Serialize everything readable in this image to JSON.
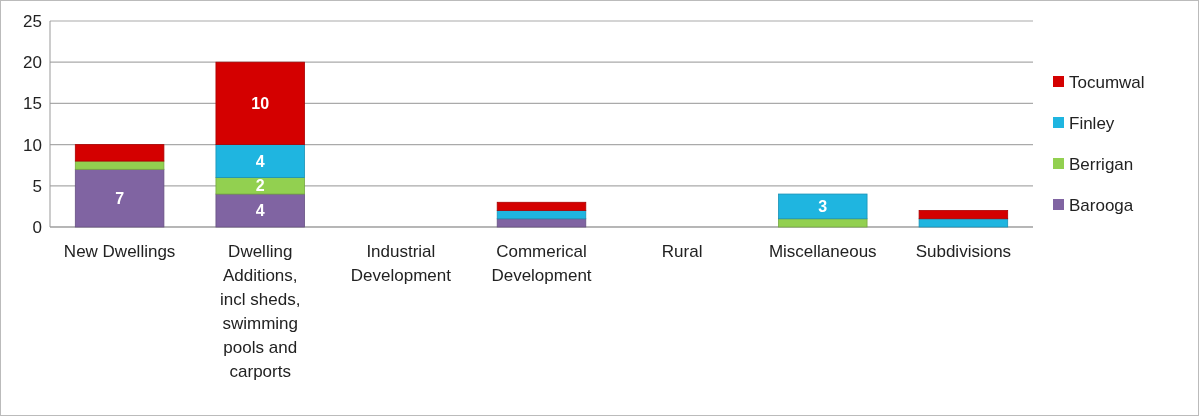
{
  "chart_data": {
    "type": "bar",
    "stacked": true,
    "categories": [
      "New Dwellings",
      "Dwelling Additions, incl sheds, swimming pools and carports",
      "Industrial Development",
      "Commerical Development",
      "Rural",
      "Miscellaneous",
      "Subdivisions"
    ],
    "series": [
      {
        "name": "Barooga",
        "color": "#8064a2",
        "values": [
          7,
          4,
          0,
          1,
          0,
          0,
          0
        ],
        "value_labels": [
          "7",
          "4",
          null,
          null,
          null,
          null,
          null
        ]
      },
      {
        "name": "Berrigan",
        "color": "#92d050",
        "values": [
          1,
          2,
          0,
          0,
          0,
          1,
          0
        ],
        "value_labels": [
          null,
          "2",
          null,
          null,
          null,
          null,
          null
        ]
      },
      {
        "name": "Finley",
        "color": "#1fb5e0",
        "values": [
          0,
          4,
          0,
          1,
          0,
          3,
          1
        ],
        "value_labels": [
          null,
          "4",
          null,
          null,
          null,
          "3",
          null
        ]
      },
      {
        "name": "Tocumwal",
        "color": "#d40000",
        "values": [
          2,
          10,
          0,
          1,
          0,
          0,
          1
        ],
        "value_labels": [
          null,
          "10",
          null,
          null,
          null,
          null,
          null
        ]
      }
    ],
    "ylim": [
      0,
      25
    ],
    "yticks": [
      0,
      5,
      10,
      15,
      20,
      25
    ],
    "grid": "y",
    "legend": "right"
  }
}
